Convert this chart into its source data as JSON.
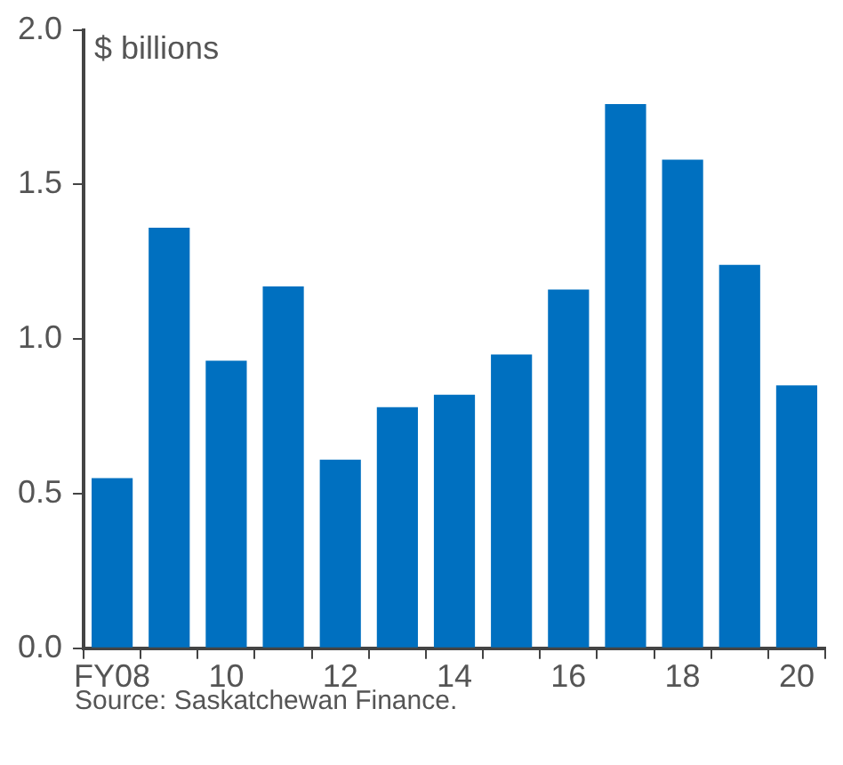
{
  "chart_data": {
    "type": "bar",
    "categories": [
      "FY08",
      null,
      "10",
      null,
      "12",
      null,
      "14",
      null,
      "16",
      null,
      "18",
      null,
      "20"
    ],
    "values": [
      0.55,
      1.36,
      0.93,
      1.17,
      0.61,
      0.78,
      0.82,
      0.95,
      1.16,
      1.76,
      1.58,
      1.24,
      0.85
    ],
    "color": "#0070c0",
    "ylabel": "$ billions",
    "ylim": [
      0,
      2.0
    ],
    "yticks": [
      {
        "value": 0,
        "label": "0.0"
      },
      {
        "value": 0.5,
        "label": "0.5"
      },
      {
        "value": 1,
        "label": "1.0"
      },
      {
        "value": 1.5,
        "label": "1.5"
      },
      {
        "value": 2,
        "label": "2.0"
      }
    ],
    "grid": false,
    "legend": false,
    "annotations": [
      "Source: Saskatchewan Finance."
    ]
  }
}
